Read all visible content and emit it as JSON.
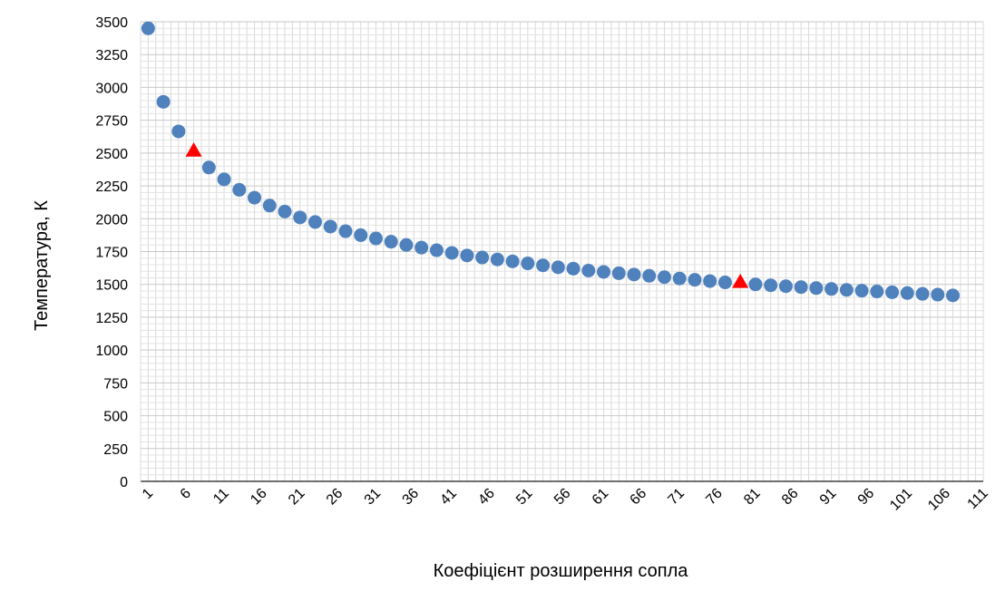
{
  "chart_data": {
    "type": "scatter",
    "title": "",
    "xlabel": "Коефіцієнт розширення сопла",
    "ylabel": "Температура, К",
    "xlim": [
      0,
      111
    ],
    "ylim": [
      0,
      3500
    ],
    "y_ticks": [
      0,
      250,
      500,
      750,
      1000,
      1250,
      1500,
      1750,
      2000,
      2250,
      2500,
      2750,
      3000,
      3250,
      3500
    ],
    "x_ticks": [
      1,
      6,
      11,
      16,
      21,
      26,
      31,
      36,
      41,
      46,
      51,
      56,
      61,
      66,
      71,
      76,
      81,
      86,
      91,
      96,
      101,
      106,
      111
    ],
    "grid": true,
    "legend": "none",
    "series": [
      {
        "marker": "circle",
        "color": "#4F81BD",
        "points": [
          [
            1,
            3450
          ],
          [
            3,
            2890
          ],
          [
            5,
            2665
          ],
          [
            9,
            2390
          ],
          [
            11,
            2300
          ],
          [
            13,
            2220
          ],
          [
            15,
            2160
          ],
          [
            17,
            2100
          ],
          [
            19,
            2055
          ],
          [
            21,
            2010
          ],
          [
            23,
            1975
          ],
          [
            25,
            1940
          ],
          [
            27,
            1905
          ],
          [
            29,
            1875
          ],
          [
            31,
            1850
          ],
          [
            33,
            1825
          ],
          [
            35,
            1800
          ],
          [
            37,
            1780
          ],
          [
            39,
            1760
          ],
          [
            41,
            1740
          ],
          [
            43,
            1720
          ],
          [
            45,
            1705
          ],
          [
            47,
            1690
          ],
          [
            49,
            1675
          ],
          [
            51,
            1660
          ],
          [
            53,
            1645
          ],
          [
            55,
            1630
          ],
          [
            57,
            1620
          ],
          [
            59,
            1605
          ],
          [
            61,
            1595
          ],
          [
            63,
            1585
          ],
          [
            65,
            1575
          ],
          [
            67,
            1565
          ],
          [
            69,
            1555
          ],
          [
            71,
            1545
          ],
          [
            73,
            1535
          ],
          [
            75,
            1525
          ],
          [
            77,
            1515
          ],
          [
            81,
            1500
          ],
          [
            83,
            1493
          ],
          [
            85,
            1486
          ],
          [
            87,
            1479
          ],
          [
            89,
            1472
          ],
          [
            91,
            1465
          ],
          [
            93,
            1458
          ],
          [
            95,
            1452
          ],
          [
            97,
            1446
          ],
          [
            99,
            1440
          ],
          [
            101,
            1434
          ],
          [
            103,
            1428
          ],
          [
            105,
            1422
          ],
          [
            107,
            1416
          ]
        ]
      },
      {
        "marker": "triangle",
        "color": "#FF0000",
        "points": [
          [
            7,
            2520
          ],
          [
            79,
            1520
          ]
        ]
      }
    ]
  }
}
